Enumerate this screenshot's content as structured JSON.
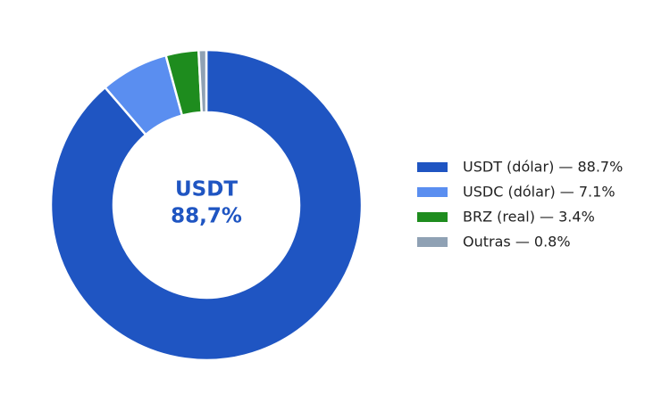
{
  "chart_data": {
    "type": "donut",
    "center_label": [
      "USDT",
      "88,7%"
    ],
    "categories": [
      "USDT (dólar) — 88.7%",
      "USDC (dólar) — 7.1%",
      "BRZ (real) — 3.4%",
      "Outras — 0.8%"
    ],
    "values": [
      88.7,
      7.1,
      3.4,
      0.8
    ],
    "colors": [
      "#1f55c2",
      "#5a8ef0",
      "#1e8c1e",
      "#8fa1b4"
    ],
    "center_color": "#1f55c2",
    "legend": "right"
  }
}
